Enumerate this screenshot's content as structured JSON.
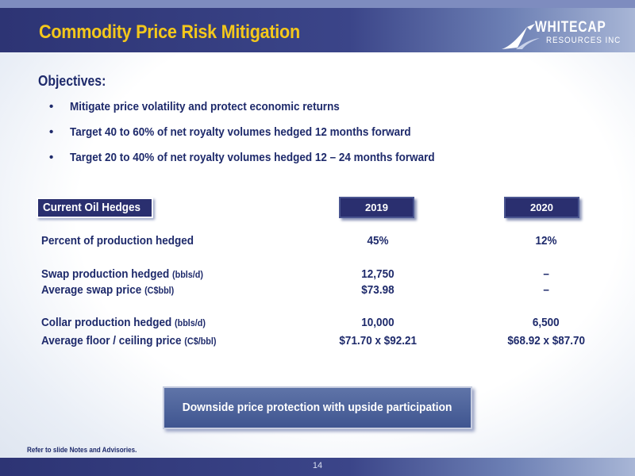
{
  "header": {
    "title": "Commodity Price Risk Mitigation",
    "logo": {
      "line1": "WHITECAP",
      "line2": "RESOURCES INC"
    }
  },
  "objectives": {
    "heading": "Objectives:",
    "items": [
      "Mitigate price volatility and protect economic returns",
      "Target 40 to 60% of net royalty volumes hedged 12 months forward",
      "Target 20 to 40% of net royalty volumes hedged 12 – 24 months forward"
    ]
  },
  "hedges": {
    "label": "Current Oil Hedges",
    "years": [
      "2019",
      "2020"
    ],
    "rows": [
      {
        "label": "Percent of production hedged",
        "unit": "",
        "v2019": "45%",
        "v2020": "12%"
      },
      {
        "label": "Swap production hedged",
        "unit": "(bbls/d)",
        "v2019": "12,750",
        "v2020": "–"
      },
      {
        "label": "Average swap price",
        "unit": "(C$bbl)",
        "v2019": "$73.98",
        "v2020": "–"
      },
      {
        "label": "Collar production hedged",
        "unit": "(bbls/d)",
        "v2019": "10,000",
        "v2020": "6,500"
      },
      {
        "label": "Average floor / ceiling price",
        "unit": "(C$/bbl)",
        "v2019": "$71.70 x $92.21",
        "v2020": "$68.92 x $87.70"
      }
    ]
  },
  "callout": "Downside price protection with upside participation",
  "footnote": "Refer to slide Notes and Advisories.",
  "page_number": "14",
  "colors": {
    "navy": "#2a2f6f",
    "title_gold": "#f4c81b",
    "text_navy": "#1e2a6b"
  }
}
